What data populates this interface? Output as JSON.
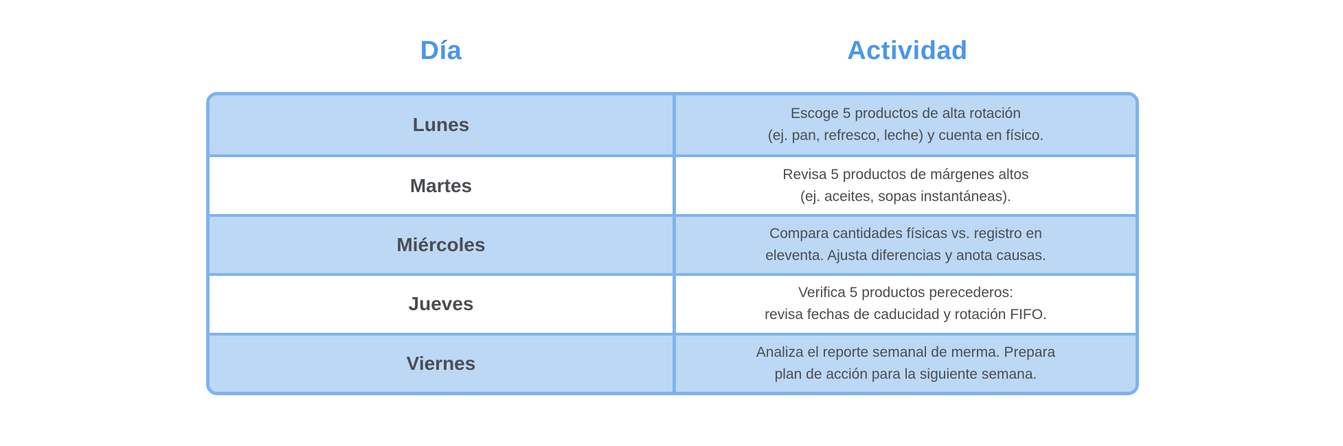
{
  "colors": {
    "header_blue": "#4a96ea",
    "border_blue": "#7fb3ee",
    "fill_blue": "#bcd8f5",
    "text_gray": "#4a4d52",
    "page_bg": "#ffffff"
  },
  "table": {
    "headers": {
      "day": "Día",
      "activity": "Actividad"
    },
    "rows": [
      {
        "day": "Lunes",
        "activity_line1": "Escoge 5 productos de alta rotación",
        "activity_line2": "(ej. pan, refresco, leche) y cuenta en físico."
      },
      {
        "day": "Martes",
        "activity_line1": "Revisa 5 productos de márgenes altos",
        "activity_line2": "(ej. aceites, sopas instantáneas)."
      },
      {
        "day": "Miércoles",
        "activity_line1": "Compara cantidades físicas vs. registro en",
        "activity_line2": "eleventa. Ajusta diferencias y anota causas."
      },
      {
        "day": "Jueves",
        "activity_line1": "Verifica 5 productos perecederos:",
        "activity_line2": "revisa fechas de caducidad y rotación FIFO."
      },
      {
        "day": "Viernes",
        "activity_line1": "Analiza el reporte semanal de merma. Prepara",
        "activity_line2": "plan de acción para la siguiente semana."
      }
    ]
  }
}
